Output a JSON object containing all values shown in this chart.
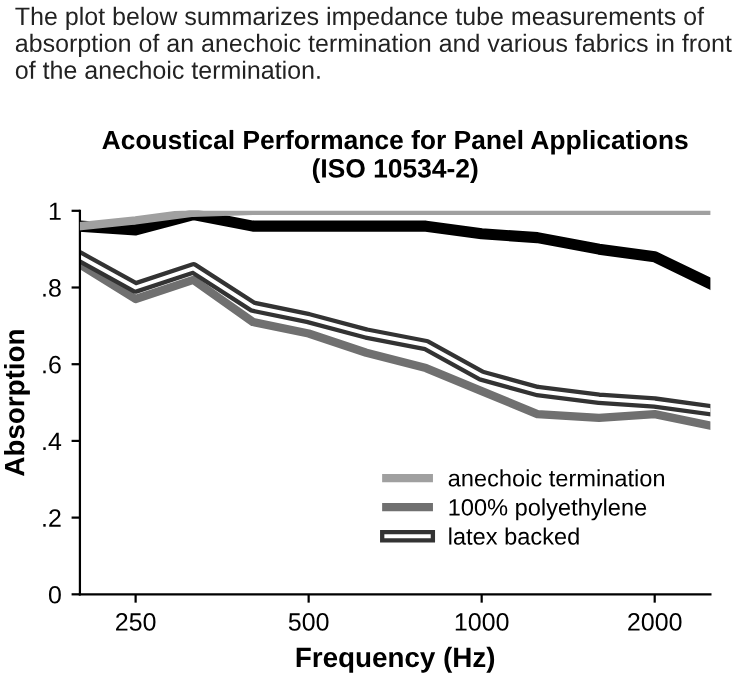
{
  "chart_data": {
    "type": "line",
    "title": "Acoustical Performance for Panel Applications\n(ISO 10534-2)",
    "annotations": [
      "The plot below summarizes impedance tube measurements of absorption of an anechoic termination and various fabrics in front of the anechoic termination."
    ],
    "xlabel": "Frequency (Hz)",
    "ylabel": "Absorption",
    "x": [
      200,
      250,
      315,
      400,
      500,
      630,
      800,
      1000,
      1250,
      1600,
      2000,
      2500
    ],
    "log": "x",
    "xlim": [
      200,
      2500
    ],
    "xticks": [
      250,
      500,
      1000,
      2000
    ],
    "ylim": [
      0,
      1
    ],
    "yticks": [
      0,
      {
        "value": 0.2,
        "label": ".2"
      },
      {
        "value": 0.4,
        "label": ".4"
      },
      {
        "value": 0.6,
        "label": ".6"
      },
      {
        "value": 0.8,
        "label": ".8"
      },
      1
    ],
    "grid": false,
    "legend": "bottom right",
    "marker": "none",
    "line_style": "solid",
    "series": [
      {
        "name": "anechoic termination",
        "color": "#a0a0a0",
        "values": [
          0.96,
          0.975,
          0.995,
          1.0,
          1.0,
          1.0,
          1.0,
          1.0,
          1.0,
          1.0,
          1.0,
          1.0
        ]
      },
      {
        "color": "#000000",
        "values": [
          0.96,
          0.95,
          0.99,
          0.96,
          0.96,
          0.96,
          0.96,
          0.94,
          0.93,
          0.9,
          0.88,
          0.81
        ]
      },
      {
        "name": "100% polyethylene",
        "color": "#707070",
        "values": [
          0.86,
          0.77,
          0.82,
          0.71,
          0.68,
          0.63,
          0.59,
          0.53,
          0.47,
          0.46,
          0.47,
          0.44
        ]
      },
      {
        "name": "latex backed",
        "color": "#333333",
        "values": [
          0.88,
          0.8,
          0.85,
          0.75,
          0.72,
          0.68,
          0.65,
          0.57,
          0.53,
          0.51,
          0.5,
          0.48
        ]
      }
    ]
  }
}
